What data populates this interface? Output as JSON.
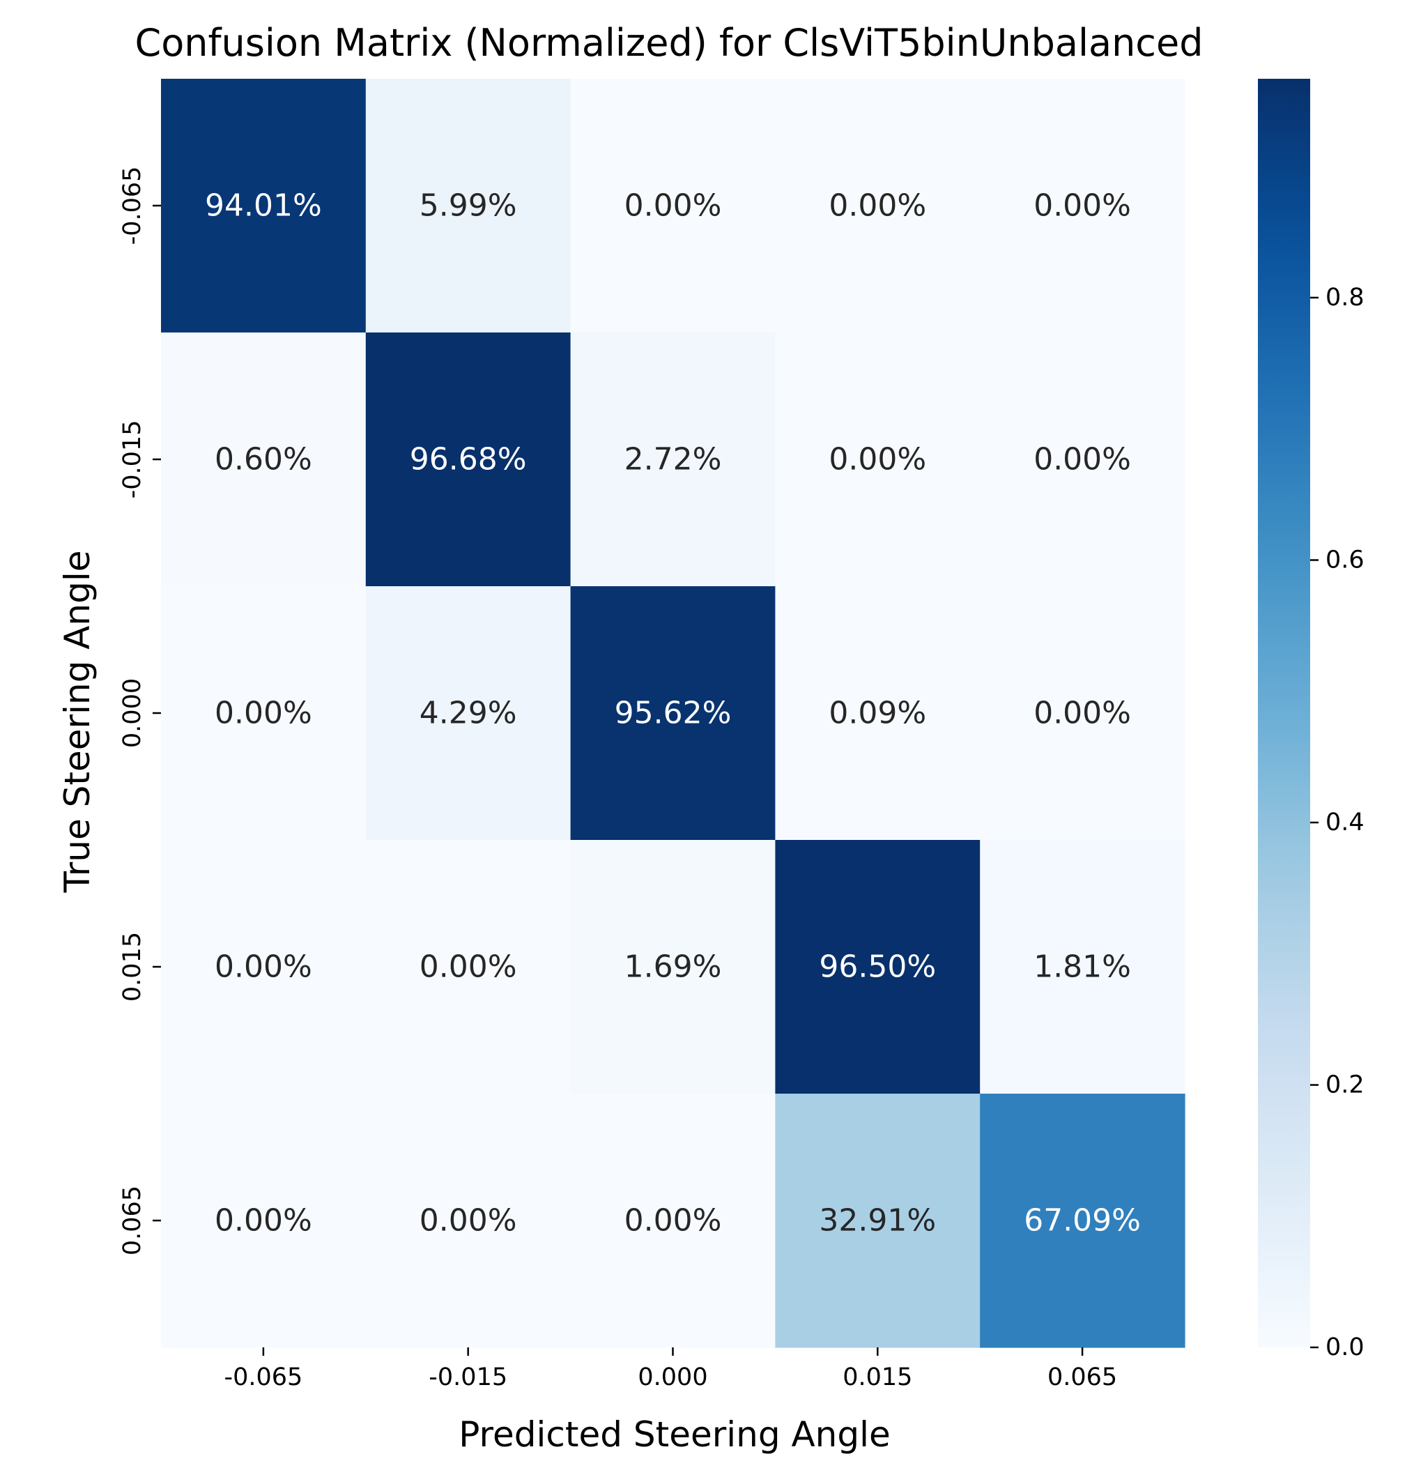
{
  "chart_data": {
    "type": "heatmap",
    "title": "Confusion Matrix (Normalized) for ClsViT5binUnbalanced",
    "xlabel": "Predicted Steering Angle",
    "ylabel": "True Steering Angle",
    "x_categories": [
      "-0.065",
      "-0.015",
      "0.000",
      "0.015",
      "0.065"
    ],
    "y_categories": [
      "-0.065",
      "-0.015",
      "0.000",
      "0.015",
      "0.065"
    ],
    "values": [
      [
        0.9401,
        0.0599,
        0.0,
        0.0,
        0.0
      ],
      [
        0.006,
        0.9668,
        0.0272,
        0.0,
        0.0
      ],
      [
        0.0,
        0.0429,
        0.9562,
        0.0009,
        0.0
      ],
      [
        0.0,
        0.0,
        0.0169,
        0.965,
        0.0181
      ],
      [
        0.0,
        0.0,
        0.0,
        0.3291,
        0.6709
      ]
    ],
    "annotations": [
      [
        "94.01%",
        "5.99%",
        "0.00%",
        "0.00%",
        "0.00%"
      ],
      [
        "0.60%",
        "96.68%",
        "2.72%",
        "0.00%",
        "0.00%"
      ],
      [
        "0.00%",
        "4.29%",
        "95.62%",
        "0.09%",
        "0.00%"
      ],
      [
        "0.00%",
        "0.00%",
        "1.69%",
        "96.50%",
        "1.81%"
      ],
      [
        "0.00%",
        "0.00%",
        "0.00%",
        "32.91%",
        "67.09%"
      ]
    ],
    "colormap": "Blues",
    "vmin": 0.0,
    "vmax": 0.9668,
    "colorbar_ticks": [
      "0.0",
      "0.2",
      "0.4",
      "0.6",
      "0.8"
    ],
    "colorbar_tick_values": [
      0.0,
      0.2,
      0.4,
      0.6,
      0.8
    ],
    "grid": false,
    "colorbar_position": "right"
  }
}
